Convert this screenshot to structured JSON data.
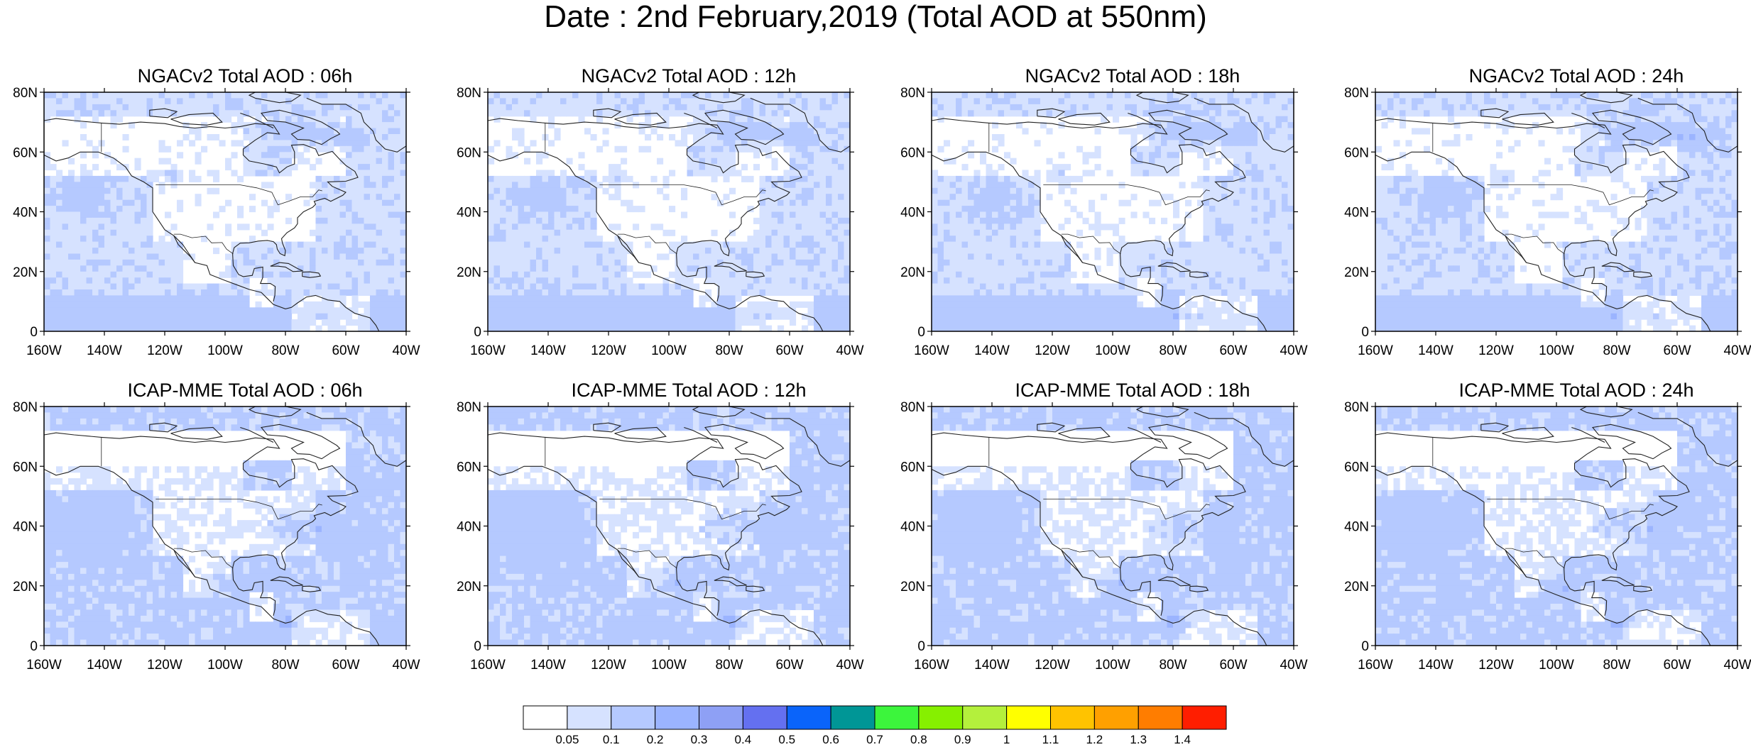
{
  "title": "Date : 2nd February,2019 (Total AOD at 550nm)",
  "panels": [
    {
      "title": "NGACv2 Total AOD : 06h",
      "model": "NGAC",
      "hour": 6
    },
    {
      "title": "NGACv2 Total AOD : 12h",
      "model": "NGAC",
      "hour": 12
    },
    {
      "title": "NGACv2 Total AOD : 18h",
      "model": "NGAC",
      "hour": 18
    },
    {
      "title": "NGACv2 Total AOD : 24h",
      "model": "NGAC",
      "hour": 24
    },
    {
      "title": "ICAP-MME Total AOD : 06h",
      "model": "ICAP",
      "hour": 6
    },
    {
      "title": "ICAP-MME Total AOD : 12h",
      "model": "ICAP",
      "hour": 12
    },
    {
      "title": "ICAP-MME Total AOD : 18h",
      "model": "ICAP",
      "hour": 18
    },
    {
      "title": "ICAP-MME Total AOD : 24h",
      "model": "ICAP",
      "hour": 24
    }
  ],
  "map": {
    "lon_range": [
      -160,
      -40
    ],
    "lat_range": [
      0,
      80
    ],
    "lat_ticks": [
      {
        "v": 0,
        "label": "0"
      },
      {
        "v": 20,
        "label": "20N"
      },
      {
        "v": 40,
        "label": "40N"
      },
      {
        "v": 60,
        "label": "60N"
      },
      {
        "v": 80,
        "label": "80N"
      }
    ],
    "lon_ticks": [
      {
        "v": -160,
        "label": "160W"
      },
      {
        "v": -140,
        "label": "140W"
      },
      {
        "v": -120,
        "label": "120W"
      },
      {
        "v": -100,
        "label": "100W"
      },
      {
        "v": -80,
        "label": "80W"
      },
      {
        "v": -60,
        "label": "60W"
      },
      {
        "v": -40,
        "label": "40W"
      }
    ]
  },
  "colorbar": {
    "colors": [
      "#ffffff",
      "#d6e2ff",
      "#b5c9ff",
      "#9bb4ff",
      "#8ea0f5",
      "#6470f0",
      "#0a64fa",
      "#009696",
      "#3cf53c",
      "#86f000",
      "#b4f03c",
      "#ffff00",
      "#ffc300",
      "#ffa000",
      "#ff7d00",
      "#ff1e00"
    ],
    "labels": [
      "0.05",
      "0.1",
      "0.2",
      "0.3",
      "0.4",
      "0.5",
      "0.6",
      "0.7",
      "0.8",
      "0.9",
      "1",
      "1.1",
      "1.2",
      "1.3",
      "1.4"
    ]
  }
}
